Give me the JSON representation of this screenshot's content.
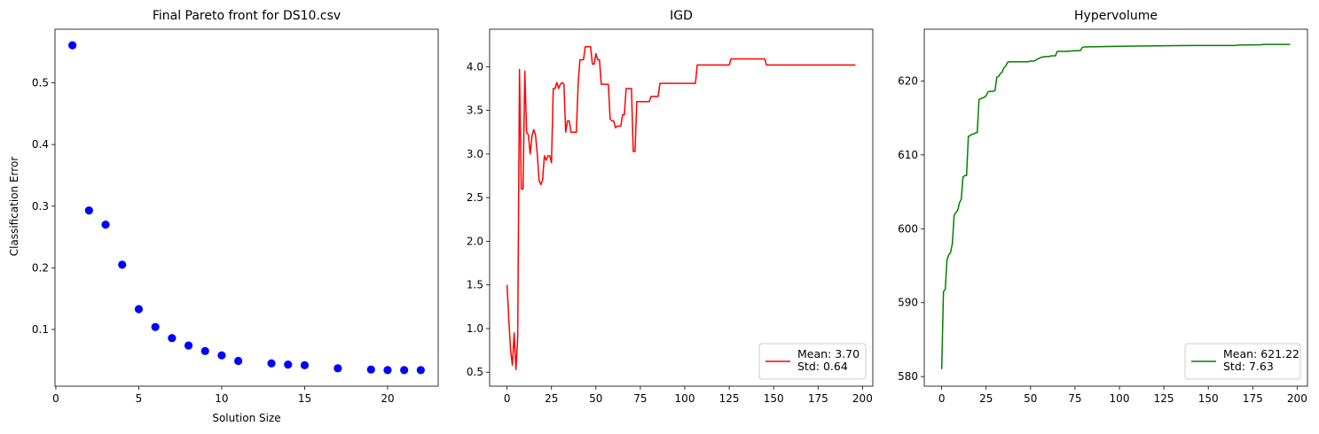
{
  "chart_data": [
    {
      "type": "scatter",
      "title": "Final Pareto front for DS10.csv",
      "xlabel": "Solution Size",
      "ylabel": "Classification Error",
      "xlim": [
        -0.05,
        23.05
      ],
      "ylim": [
        0.008,
        0.587
      ],
      "xticks": [
        0,
        5,
        10,
        15,
        20
      ],
      "yticks": [
        0.1,
        0.2,
        0.3,
        0.4,
        0.5
      ],
      "color": "#0000ff",
      "grid": false,
      "points": [
        {
          "x": 1,
          "y": 0.561
        },
        {
          "x": 2,
          "y": 0.293
        },
        {
          "x": 3,
          "y": 0.27
        },
        {
          "x": 4,
          "y": 0.205
        },
        {
          "x": 5,
          "y": 0.133
        },
        {
          "x": 6,
          "y": 0.104
        },
        {
          "x": 7,
          "y": 0.086
        },
        {
          "x": 8,
          "y": 0.074
        },
        {
          "x": 9,
          "y": 0.065
        },
        {
          "x": 10,
          "y": 0.058
        },
        {
          "x": 11,
          "y": 0.049
        },
        {
          "x": 13,
          "y": 0.045
        },
        {
          "x": 14,
          "y": 0.043
        },
        {
          "x": 15,
          "y": 0.042
        },
        {
          "x": 17,
          "y": 0.037
        },
        {
          "x": 19,
          "y": 0.035
        },
        {
          "x": 20,
          "y": 0.034
        },
        {
          "x": 21,
          "y": 0.034
        },
        {
          "x": 22,
          "y": 0.034
        }
      ]
    },
    {
      "type": "line",
      "title": "IGD",
      "xlabel": "",
      "ylabel": "",
      "xlim": [
        -9.8,
        205.8
      ],
      "ylim": [
        0.34,
        4.43
      ],
      "xticks": [
        0,
        25,
        50,
        75,
        100,
        125,
        150,
        175,
        200
      ],
      "yticks": [
        0.5,
        1.0,
        1.5,
        2.0,
        2.5,
        3.0,
        3.5,
        4.0
      ],
      "ytick_format": 1,
      "color": "#ff0000",
      "grid": false,
      "legend": {
        "location": "lower right",
        "lines": [
          "Mean: 3.70",
          "Std: 0.64"
        ]
      },
      "x": [
        0,
        1,
        2,
        3,
        4,
        5,
        6,
        7,
        8,
        9,
        10,
        11,
        12,
        13,
        14,
        15,
        16,
        17,
        18,
        19,
        20,
        21,
        22,
        23,
        24,
        25,
        26,
        27,
        28,
        29,
        30,
        31,
        32,
        33,
        34,
        35,
        36,
        37,
        38,
        39,
        40,
        41,
        42,
        43,
        44,
        45,
        46,
        47,
        48,
        49,
        50,
        51,
        52,
        53,
        54,
        55,
        56,
        57,
        58,
        59,
        60,
        61,
        62,
        63,
        64,
        65,
        66,
        67,
        68,
        69,
        70,
        71,
        72,
        73,
        74,
        75,
        76,
        80,
        81,
        85,
        86,
        90,
        91,
        100,
        106,
        107,
        110,
        120,
        125,
        126,
        140,
        145,
        146,
        160,
        180,
        181,
        196
      ],
      "y": [
        1.5,
        1.1,
        0.75,
        0.58,
        0.95,
        0.53,
        0.9,
        3.97,
        2.6,
        2.6,
        3.95,
        3.25,
        3.22,
        3.0,
        3.2,
        3.28,
        3.22,
        3.0,
        2.7,
        2.65,
        2.7,
        2.98,
        2.93,
        2.98,
        2.98,
        2.9,
        3.75,
        3.75,
        3.82,
        3.75,
        3.8,
        3.82,
        3.8,
        3.25,
        3.38,
        3.38,
        3.25,
        3.25,
        3.25,
        3.25,
        3.8,
        4.08,
        4.08,
        4.08,
        4.23,
        4.23,
        4.23,
        4.23,
        4.03,
        4.03,
        4.15,
        4.08,
        4.08,
        3.8,
        3.8,
        3.8,
        3.8,
        3.8,
        3.4,
        3.38,
        3.38,
        3.3,
        3.32,
        3.32,
        3.32,
        3.45,
        3.45,
        3.75,
        3.75,
        3.75,
        3.75,
        3.03,
        3.03,
        3.6,
        3.6,
        3.6,
        3.6,
        3.6,
        3.66,
        3.66,
        3.81,
        3.81,
        3.81,
        3.81,
        3.81,
        4.02,
        4.02,
        4.02,
        4.02,
        4.09,
        4.09,
        4.09,
        4.02,
        4.02,
        4.02,
        4.02,
        4.02
      ]
    },
    {
      "type": "line",
      "title": "Hypervolume",
      "xlabel": "",
      "ylabel": "",
      "xlim": [
        -9.8,
        205.8
      ],
      "ylim": [
        578.7,
        627.0
      ],
      "xticks": [
        0,
        25,
        50,
        75,
        100,
        125,
        150,
        175,
        200
      ],
      "yticks": [
        580,
        590,
        600,
        610,
        620
      ],
      "ytick_format": 0,
      "color": "#008000",
      "grid": false,
      "legend": {
        "location": "lower right",
        "lines": [
          "Mean: 621.22",
          "Std: 7.63"
        ]
      },
      "x": [
        0,
        1,
        2,
        3,
        4,
        5,
        6,
        7,
        8,
        9,
        10,
        11,
        12,
        13,
        14,
        15,
        16,
        17,
        18,
        19,
        20,
        21,
        22,
        23,
        24,
        25,
        26,
        27,
        28,
        29,
        30,
        31,
        32,
        33,
        34,
        35,
        36,
        37,
        38,
        39,
        40,
        41,
        42,
        43,
        44,
        45,
        46,
        47,
        48,
        49,
        50,
        52,
        55,
        56,
        58,
        60,
        62,
        64,
        65,
        66,
        70,
        75,
        78,
        79,
        80,
        100,
        120,
        140,
        150,
        165,
        166,
        180,
        181,
        196
      ],
      "y": [
        581.0,
        591.5,
        591.8,
        595.8,
        596.5,
        596.8,
        598.0,
        601.8,
        602.2,
        602.5,
        603.5,
        604.0,
        607.0,
        607.2,
        607.2,
        612.5,
        612.6,
        612.8,
        612.8,
        613.0,
        613.0,
        617.5,
        617.6,
        617.7,
        617.8,
        618.0,
        618.5,
        618.6,
        618.6,
        618.6,
        618.7,
        620.5,
        620.6,
        621.0,
        621.2,
        621.8,
        622.0,
        622.5,
        622.6,
        622.6,
        622.6,
        622.6,
        622.6,
        622.6,
        622.6,
        622.6,
        622.6,
        622.6,
        622.6,
        622.6,
        622.7,
        622.7,
        623.1,
        623.2,
        623.3,
        623.3,
        623.4,
        623.4,
        624.0,
        624.0,
        624.0,
        624.1,
        624.1,
        624.5,
        624.6,
        624.7,
        624.75,
        624.8,
        624.8,
        624.8,
        624.85,
        624.9,
        624.95,
        624.95
      ]
    }
  ]
}
